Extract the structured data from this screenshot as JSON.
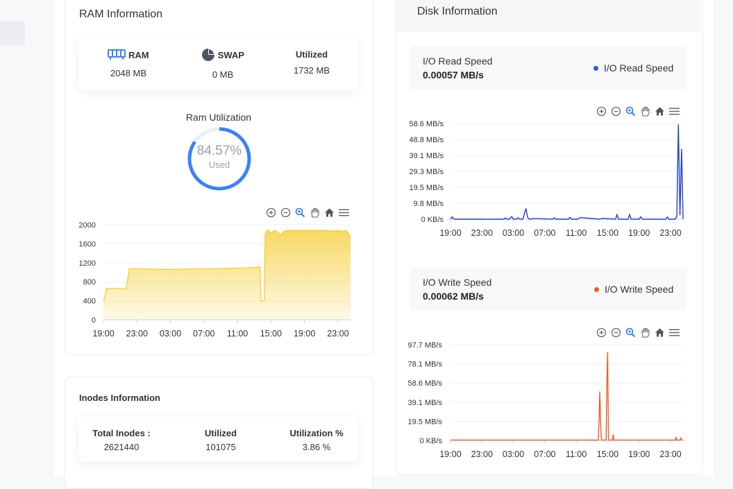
{
  "ram": {
    "title": "RAM Information",
    "ram_label": "RAM",
    "ram_value": "2048 MB",
    "swap_label": "SWAP",
    "swap_value": "0 MB",
    "utilized_label": "Utilized",
    "utilized_value": "1732 MB",
    "utilization_title": "Ram Utilization",
    "utilization_pct": "84.57%",
    "utilization_fraction": 0.8457,
    "used_label": "Used",
    "accent": "#3b82f6"
  },
  "inodes": {
    "title": "Inodes Information",
    "total_label": "Total Inodes :",
    "total_value": "2621440",
    "utilized_label": "Utilized",
    "utilized_value": "101075",
    "pct_label": "Utilization %",
    "pct_value": "3.86 %"
  },
  "disk": {
    "title": "Disk Information",
    "read": {
      "title": "I/O Read Speed",
      "value": "0.00057 MB/s",
      "legend": "I/O Read Speed",
      "color": "#1f3fcf"
    },
    "write": {
      "title": "I/O Write Speed",
      "value": "0.00062 MB/s",
      "legend": "I/O Write Speed",
      "color": "#f05a24"
    }
  },
  "toolbar_icons": [
    "zoom-in-icon",
    "zoom-out-icon",
    "selection-zoom-icon",
    "pan-hand-icon",
    "home-reset-icon",
    "menu-icon"
  ],
  "chart_data": [
    {
      "type": "area",
      "name": "ram_usage",
      "color": "#f5cf3b",
      "yticks": [
        "2000",
        "1600",
        "1200",
        "800",
        "400",
        "0"
      ],
      "xticks": [
        "19:00",
        "23:00",
        "03:00",
        "07:00",
        "11:00",
        "15:00",
        "19:00",
        "23:00"
      ],
      "ylim": [
        0,
        2000
      ],
      "x_hours": [
        0,
        0.1,
        0.4,
        2.5,
        2.7,
        3.1,
        3.6,
        8,
        13,
        17.2,
        18.6,
        18.7,
        18.8,
        19.2,
        19.3,
        19.6,
        20,
        20.5,
        21.2,
        21.4,
        21.6,
        22,
        23,
        24,
        26,
        27,
        28,
        28.5,
        29,
        29.5
      ],
      "values": [
        400,
        430,
        660,
        660,
        640,
        1070,
        1070,
        1060,
        1075,
        1090,
        1110,
        1105,
        400,
        400,
        1800,
        1890,
        1830,
        1880,
        1790,
        1840,
        1870,
        1880,
        1880,
        1880,
        1880,
        1870,
        1880,
        1860,
        1880,
        1740
      ]
    },
    {
      "type": "line",
      "name": "io_read_speed",
      "color": "#1f3fcf",
      "yticks": [
        "58.6 MB/s",
        "48.8 MB/s",
        "39.1 MB/s",
        "29.3 MB/s",
        "19.5 MB/s",
        "9.8 MB/s",
        "0 KB/s"
      ],
      "xticks": [
        "19:00",
        "23:00",
        "03:00",
        "07:00",
        "11:00",
        "15:00",
        "19:00",
        "23:00"
      ],
      "ylim": [
        0,
        58.6
      ],
      "x_hours": [
        0,
        0.2,
        0.4,
        0.6,
        6.8,
        7,
        7.2,
        7.5,
        7.8,
        8,
        8.2,
        8.4,
        8.6,
        8.8,
        9.2,
        9.6,
        9.8,
        10,
        10.2,
        10.5,
        13,
        13.2,
        13.4,
        15,
        15.2,
        15.4,
        16.2,
        16.5,
        19,
        19.3,
        21,
        21.2,
        21.4,
        22.6,
        22.8,
        23,
        24,
        24.2,
        24.4,
        27.4,
        27.6,
        27.8,
        28.6,
        28.8,
        29,
        29.2,
        29.4,
        29.6
      ],
      "values": [
        0,
        1.4,
        0.3,
        0,
        0,
        0.8,
        0,
        0,
        1.6,
        0,
        0,
        0,
        0.9,
        0,
        0,
        6.6,
        1.2,
        0,
        0,
        0.4,
        0,
        0.8,
        0,
        0,
        1.1,
        0,
        0,
        1.0,
        0,
        0.5,
        0,
        2.8,
        0,
        0,
        2.8,
        0,
        0,
        1.5,
        0,
        0,
        1.4,
        0,
        0,
        2.0,
        58,
        2.4,
        43,
        0
      ]
    },
    {
      "type": "line",
      "name": "io_write_speed",
      "color": "#f05a24",
      "yticks": [
        "97.7 MB/s",
        "78.1 MB/s",
        "58.6 MB/s",
        "39.1 MB/s",
        "19.5 MB/s",
        "0 KB/s"
      ],
      "xticks": [
        "19:00",
        "23:00",
        "03:00",
        "07:00",
        "11:00",
        "15:00",
        "19:00",
        "23:00"
      ],
      "ylim": [
        0,
        97.7
      ],
      "x_hours": [
        0,
        18.8,
        18.9,
        19.0,
        19.1,
        19.2,
        19.8,
        19.9,
        20.0,
        20.1,
        20.6,
        20.7,
        20.8,
        21,
        28.6,
        28.7,
        28.8,
        29.2,
        29.3,
        29.4,
        29.6
      ],
      "values": [
        0.4,
        0.4,
        20,
        50,
        18,
        0.4,
        0.4,
        60,
        90,
        0.4,
        0.4,
        6,
        0.4,
        0.4,
        0.4,
        3,
        0.4,
        0.4,
        2.5,
        0.4,
        0.4
      ]
    }
  ]
}
